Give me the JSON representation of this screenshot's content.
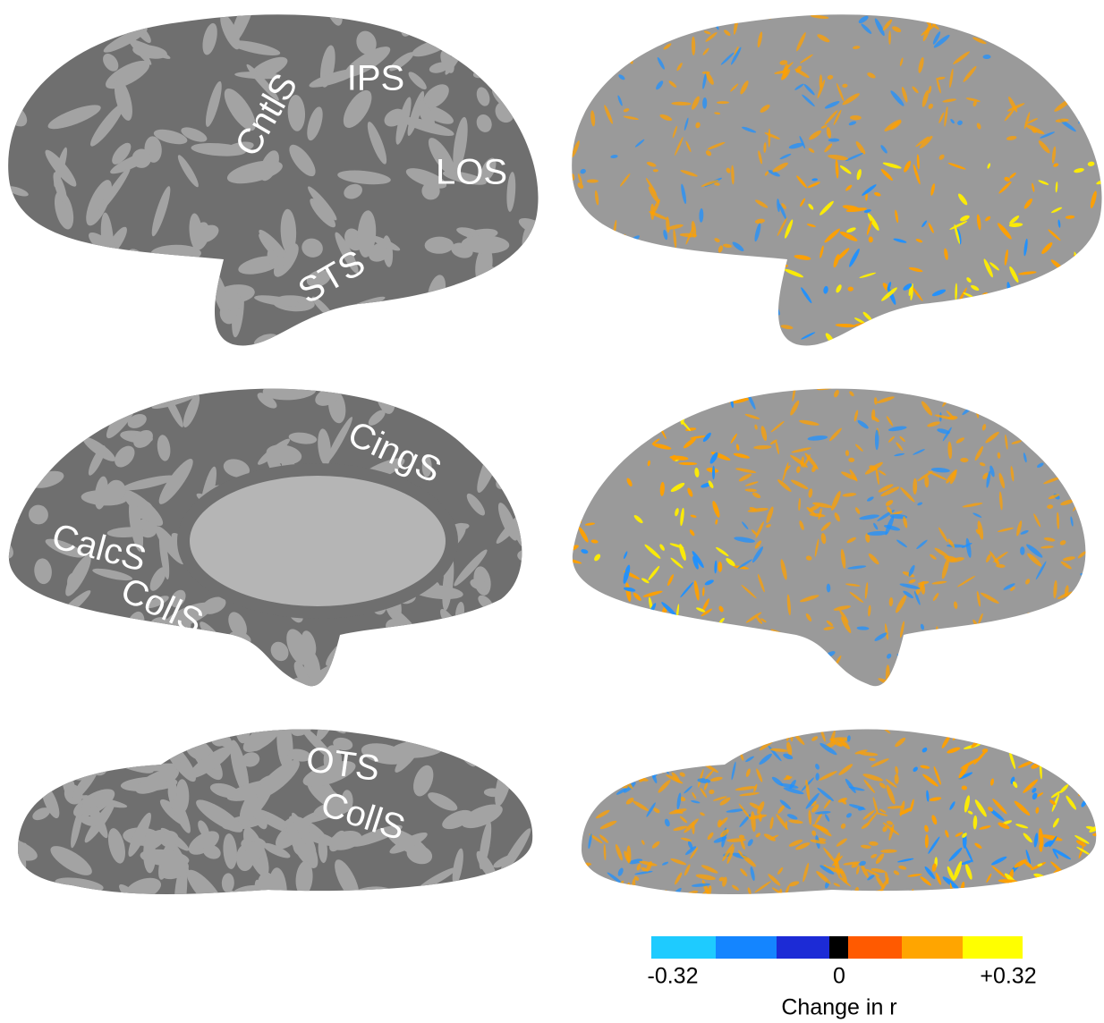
{
  "lateral": {
    "labels": [
      "CntlS",
      "IPS",
      "LOS",
      "STS"
    ]
  },
  "medial": {
    "labels": [
      "CingS",
      "CalcS",
      "CollS"
    ]
  },
  "ventral": {
    "labels": [
      "OTS",
      "CollS"
    ]
  },
  "colorbar": {
    "colors": [
      "#1ecbff",
      "#1485ff",
      "#1c2bd6",
      "#000000",
      "#ff5a00",
      "#ffa500",
      "#ffff00"
    ],
    "tick_labels": [
      "-0.32",
      "0",
      "+0.32"
    ],
    "title": "Change in r"
  }
}
